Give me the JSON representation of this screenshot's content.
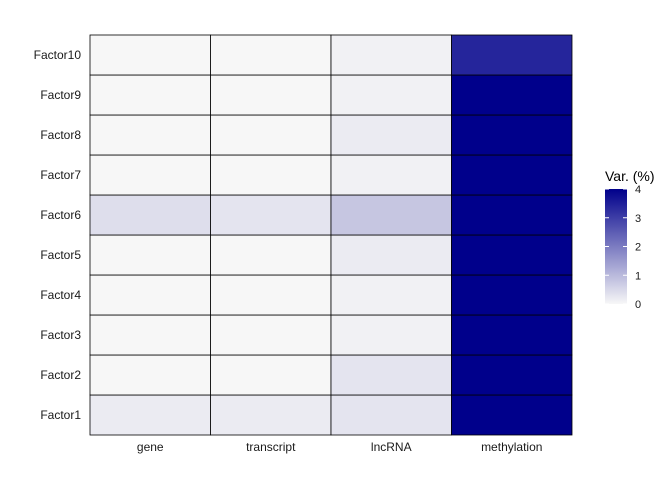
{
  "chart_data": {
    "type": "heatmap",
    "title": "",
    "xlabel": "",
    "ylabel": "",
    "x_categories": [
      "gene",
      "transcript",
      "lncRNA",
      "methylation"
    ],
    "y_categories": [
      "Factor1",
      "Factor2",
      "Factor3",
      "Factor4",
      "Factor5",
      "Factor6",
      "Factor7",
      "Factor8",
      "Factor9",
      "Factor10"
    ],
    "values": [
      [
        0.2,
        0.2,
        0.3,
        4.0
      ],
      [
        0.0,
        0.0,
        0.3,
        4.0
      ],
      [
        0.0,
        0.0,
        0.1,
        4.0
      ],
      [
        0.0,
        0.0,
        0.1,
        4.0
      ],
      [
        0.0,
        0.0,
        0.2,
        4.0
      ],
      [
        0.4,
        0.3,
        0.8,
        4.0
      ],
      [
        0.0,
        0.0,
        0.1,
        4.0
      ],
      [
        0.0,
        0.0,
        0.2,
        4.0
      ],
      [
        0.0,
        0.0,
        0.1,
        4.0
      ],
      [
        0.0,
        0.0,
        0.1,
        3.4
      ]
    ],
    "color_scale": {
      "low": "#f7f7f7",
      "high": "#00008b",
      "limits": [
        0,
        4
      ]
    },
    "legend": {
      "title": "Var. (%)",
      "ticks": [
        0,
        1,
        2,
        3,
        4
      ],
      "placement": "right"
    },
    "grid": false
  }
}
